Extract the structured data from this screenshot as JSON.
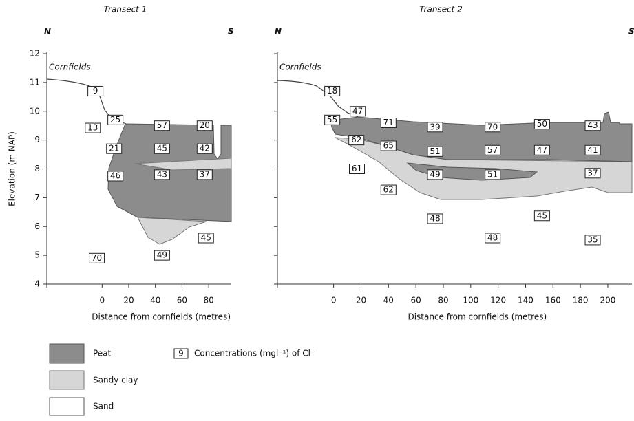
{
  "chart_data": [
    {
      "type": "section",
      "title": "Transect 1",
      "left_label": "N",
      "right_label": "S",
      "annotation": "Cornfields",
      "xlabel": "Distance from cornfields (metres)",
      "ylabel": "Elevation (m NAP)",
      "xlim": [
        -41.5,
        97
      ],
      "ylim": [
        4,
        12
      ],
      "xticks": [
        0,
        20,
        40,
        60,
        80
      ],
      "yticks": [
        4,
        5,
        6,
        7,
        8,
        9,
        10,
        11,
        12
      ],
      "ytick_labels": true,
      "x": [
        -5,
        -7,
        10,
        45,
        77,
        9,
        45,
        77,
        10,
        45,
        77,
        -4,
        45,
        78
      ],
      "y": [
        10.7,
        9.42,
        9.7,
        9.5,
        9.5,
        8.7,
        8.7,
        8.7,
        7.75,
        7.8,
        7.8,
        4.9,
        5.0,
        5.6
      ],
      "values": [
        9,
        13,
        25,
        57,
        20,
        21,
        45,
        42,
        46,
        43,
        37,
        70,
        49,
        45
      ]
    },
    {
      "type": "section",
      "title": "Transect 2",
      "left_label": "N",
      "right_label": "S",
      "annotation": "Cornfields",
      "xlabel": "Distance from cornfields (metres)",
      "xlim": [
        -41,
        217.6
      ],
      "ylim": [
        4,
        12
      ],
      "xticks": [
        0,
        20,
        40,
        60,
        80,
        100,
        120,
        140,
        160,
        180,
        200
      ],
      "yticks": [
        4,
        5,
        6,
        7,
        8,
        9,
        10,
        11,
        12
      ],
      "ytick_labels": false,
      "x": [
        -1,
        17.6,
        -1,
        40,
        74,
        116,
        152,
        189,
        16.6,
        40,
        74,
        116,
        152,
        189,
        17,
        74,
        116,
        189,
        40,
        74,
        152,
        116,
        189
      ],
      "y": [
        10.7,
        10.0,
        9.7,
        9.6,
        9.45,
        9.45,
        9.55,
        9.5,
        9.0,
        8.8,
        8.6,
        8.65,
        8.65,
        8.65,
        8.0,
        7.8,
        7.8,
        7.85,
        7.27,
        6.27,
        6.37,
        5.6,
        5.53
      ],
      "values": [
        18,
        47,
        55,
        71,
        39,
        70,
        50,
        43,
        62,
        65,
        51,
        57,
        47,
        41,
        61,
        49,
        51,
        37,
        62,
        48,
        45,
        48,
        35
      ]
    }
  ],
  "legend": {
    "items": [
      "Peat",
      "Sandy clay",
      "Sand"
    ],
    "sample": 9,
    "sample_text": "Concentrations (mgl⁻¹) of Cl⁻"
  }
}
